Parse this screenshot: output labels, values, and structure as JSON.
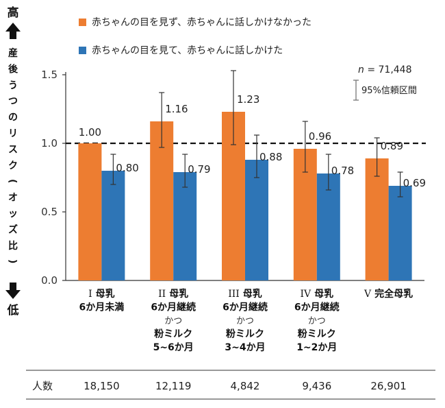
{
  "chart_data": {
    "type": "bar",
    "categories": [
      {
        "numeral": "I",
        "lines": [
          "母乳",
          "6か月未満"
        ]
      },
      {
        "numeral": "II",
        "lines": [
          "母乳",
          "6か月継続",
          "かつ",
          "粉ミルク",
          "5~6か月"
        ]
      },
      {
        "numeral": "III",
        "lines": [
          "母乳",
          "6か月継続",
          "かつ",
          "粉ミルク",
          "3~4か月"
        ]
      },
      {
        "numeral": "IV",
        "lines": [
          "母乳",
          "6か月継続",
          "かつ",
          "粉ミルク",
          "1~2か月"
        ]
      },
      {
        "numeral": "V",
        "lines": [
          "完全母乳"
        ]
      }
    ],
    "series": [
      {
        "name": "赤ちゃんの目を見ず、赤ちゃんに話しかけなかった",
        "color": "#ED7D31",
        "values": [
          1.0,
          1.16,
          1.23,
          0.96,
          0.89
        ],
        "labels": [
          "1.00",
          "1.16",
          "1.23",
          "0.96",
          "0.89"
        ],
        "ci_low": [
          null,
          0.97,
          0.99,
          0.79,
          0.76
        ],
        "ci_high": [
          null,
          1.37,
          1.53,
          1.16,
          1.04
        ]
      },
      {
        "name": "赤ちゃんの目を見て、赤ちゃんに話しかけた",
        "color": "#2E75B6",
        "values": [
          0.8,
          0.79,
          0.88,
          0.78,
          0.69
        ],
        "labels": [
          "0.80",
          "0.79",
          "0.88",
          "0.78",
          "0.69"
        ],
        "ci_low": [
          0.7,
          0.68,
          0.75,
          0.66,
          0.61
        ],
        "ci_high": [
          0.92,
          0.92,
          1.06,
          0.92,
          0.79
        ]
      }
    ],
    "ylim": [
      0,
      1.5
    ],
    "yticks": [
      "0.0",
      "0.5",
      "1.0",
      "1.5"
    ],
    "reference_line": 1.0,
    "ylabel": "産後うつのリスク(オッズ比)",
    "y_top_label": "高",
    "y_bottom_label": "低",
    "n_label_italic": "n",
    "n_value": " = 71,448",
    "ci_legend": "95%信頼区間",
    "table": {
      "header": "人数",
      "values": [
        "18,150",
        "12,119",
        "4,842",
        "9,436",
        "26,901"
      ]
    }
  }
}
